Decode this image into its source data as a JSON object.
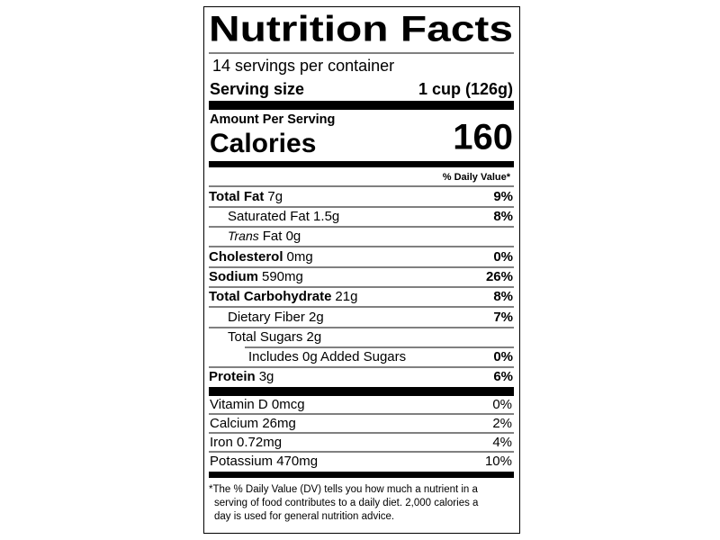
{
  "header": {
    "title": "Nutrition Facts",
    "servings": "14 servings per container",
    "serving_size_label": "Serving size",
    "serving_size": "1 cup (126g)"
  },
  "calories": {
    "heading": "Amount Per Serving",
    "label": "Calories",
    "value": "160"
  },
  "dv_heading": "% Daily Value*",
  "nutrients": [
    {
      "name": "Total Fat",
      "amount": "7g",
      "dv": "9%"
    },
    {
      "name": "Saturated Fat 1.5g",
      "dv": "8%"
    },
    {
      "name": "Trans",
      "amount": "Fat 0g"
    },
    {
      "name": "Cholesterol",
      "amount": "0mg",
      "dv": "0%"
    },
    {
      "name": "Sodium",
      "amount": "590mg",
      "dv": "26%"
    },
    {
      "name": "Total Carbohydrate",
      "amount": "21g",
      "dv": "8%"
    },
    {
      "name": "Dietary Fiber 2g",
      "dv": "7%"
    },
    {
      "name": "Total Sugars 2g"
    },
    {
      "name": "Includes 0g Added Sugars",
      "dv": "0%"
    },
    {
      "name": "Protein",
      "amount": "3g",
      "dv": "6%"
    }
  ],
  "vitamins": [
    {
      "name": "Vitamin D 0mcg",
      "dv": "0%"
    },
    {
      "name": "Calcium 26mg",
      "dv": "2%"
    },
    {
      "name": "Iron 0.72mg",
      "dv": "4%"
    },
    {
      "name": "Potassium 470mg",
      "dv": "10%"
    }
  ],
  "footnote": [
    "*The % Daily Value (DV) tells you how much a nutrient in a",
    "serving of food contributes to a daily diet. 2,000 calories a",
    "day is used for general nutrition advice."
  ]
}
